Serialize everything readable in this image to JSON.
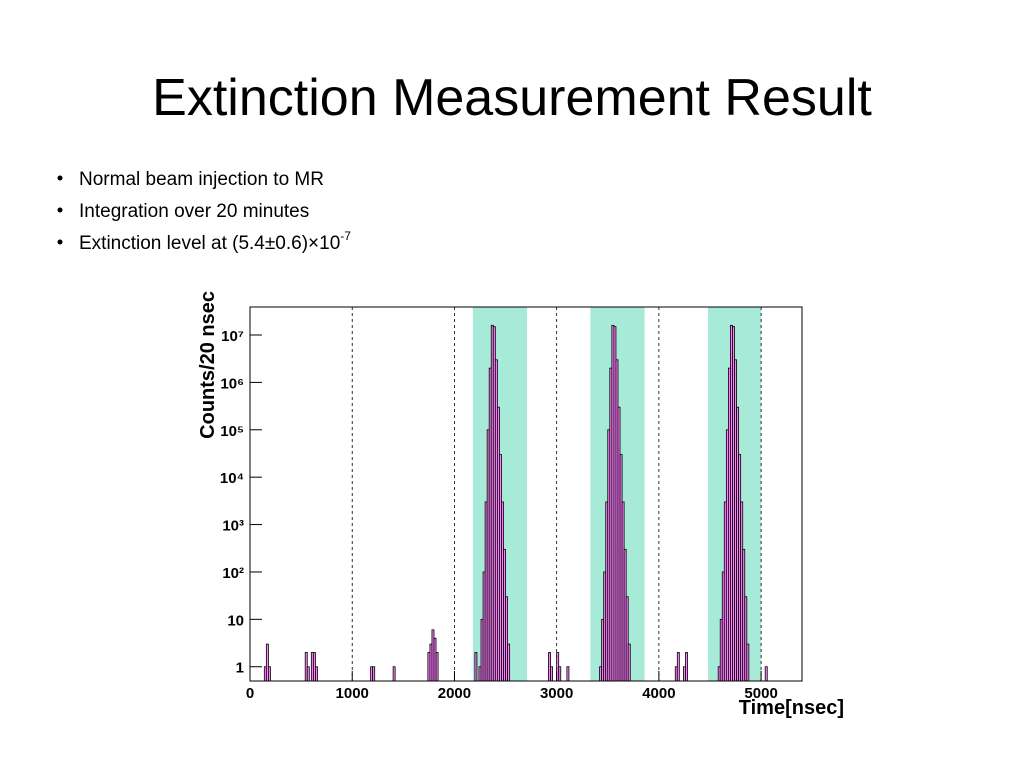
{
  "slide": {
    "title": "Extinction Measurement Result",
    "bullets": [
      {
        "text": "Normal beam injection to MR"
      },
      {
        "text": "Integration over 20 minutes"
      },
      {
        "text": "Extinction level at (5.4±0.6)×10",
        "superscript": "-7"
      }
    ]
  },
  "chart_data": {
    "type": "histogram",
    "x_label": "Time[nsec]",
    "y_label": "Counts/20 nsec",
    "bins": [
      0,
      140,
      160,
      180,
      200,
      540,
      560,
      580,
      600,
      620,
      640,
      660,
      1180,
      1200,
      1220,
      1400,
      1420,
      1740,
      1760,
      1780,
      1800,
      1820,
      1840,
      2200,
      2220,
      2240,
      2260,
      2280,
      2300,
      2320,
      2340,
      2360,
      2380,
      2400,
      2420,
      2440,
      2460,
      2480,
      2500,
      2520,
      2540,
      2920,
      2940,
      2960,
      3000,
      3020,
      3040,
      3100,
      3120,
      3420,
      3440,
      3460,
      3480,
      3500,
      3520,
      3540,
      3560,
      3580,
      3600,
      3620,
      3640,
      3660,
      3680,
      3700,
      3720,
      4160,
      4180,
      4200,
      4240,
      4260,
      4280,
      4580,
      4600,
      4620,
      4640,
      4660,
      4680,
      4700,
      4720,
      4740,
      4760,
      4780,
      4800,
      4820,
      4840,
      4860,
      4880,
      5040,
      5060,
      5400
    ],
    "values": [
      0,
      1,
      3,
      1,
      0,
      2,
      1,
      0,
      2,
      2,
      1,
      0,
      1,
      1,
      0,
      1,
      0,
      2,
      3,
      6,
      4,
      2,
      0,
      2,
      0,
      1,
      10,
      100,
      3000,
      100000,
      2000000,
      16000000,
      15000000,
      3000000,
      300000,
      30000,
      3000,
      300,
      30,
      3,
      0,
      2,
      1,
      0,
      2,
      1,
      0,
      1,
      0,
      1,
      10,
      100,
      3000,
      100000,
      2000000,
      16000000,
      15000000,
      3000000,
      300000,
      30000,
      3000,
      300,
      30,
      3,
      0,
      1,
      2,
      0,
      1,
      2,
      0,
      1,
      10,
      100,
      3000,
      100000,
      2000000,
      16000000,
      15000000,
      3000000,
      300000,
      30000,
      3000,
      300,
      30,
      3,
      0,
      1,
      0
    ],
    "color": "#ff80ff",
    "edge_color": "#000000",
    "highlight_ranges": [
      [
        2180,
        2710
      ],
      [
        3330,
        3860
      ],
      [
        4480,
        5000
      ]
    ],
    "highlight_color": "#a8ead8",
    "xlim": [
      0,
      5400
    ],
    "xticks": [
      0,
      1000,
      2000,
      3000,
      4000,
      5000
    ],
    "ylim": [
      0.5,
      39000000
    ],
    "log_y": true,
    "yticks": [
      1,
      10,
      {
        "value": 100,
        "label": "10²"
      },
      {
        "value": 1000,
        "label": "10³"
      },
      {
        "value": 10000,
        "label": "10⁴"
      },
      {
        "value": 100000,
        "label": "10⁵"
      },
      {
        "value": 1000000,
        "label": "10⁶"
      },
      {
        "value": 10000000,
        "label": "10⁷"
      }
    ],
    "grid_x": true
  }
}
